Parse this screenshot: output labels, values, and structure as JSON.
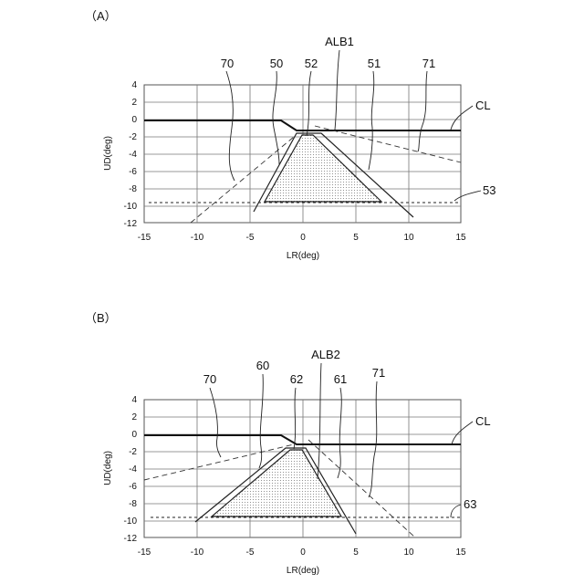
{
  "panels": [
    {
      "label": "（A）",
      "xlabel": "LR(deg)",
      "ylabel": "UD(deg)",
      "x_ticks": [
        "-15",
        "-10",
        "-5",
        "0",
        "5",
        "10",
        "15"
      ],
      "y_ticks": [
        "4",
        "2",
        "0",
        "-2",
        "-4",
        "-6",
        "-8",
        "-10",
        "-12"
      ],
      "refs": {
        "r70": "70",
        "r50": "50",
        "r52": "52",
        "alb": "ALB1",
        "r51": "51",
        "r71": "71",
        "cl": "CL",
        "r53": "53"
      }
    },
    {
      "label": "（B）",
      "xlabel": "LR(deg)",
      "ylabel": "UD(deg)",
      "x_ticks": [
        "-15",
        "-10",
        "-5",
        "0",
        "5",
        "10",
        "15"
      ],
      "y_ticks": [
        "4",
        "2",
        "0",
        "-2",
        "-4",
        "-6",
        "-8",
        "-10",
        "-12"
      ],
      "refs": {
        "r70": "70",
        "r60": "60",
        "r62": "62",
        "alb": "ALB2",
        "r61": "61",
        "r71": "71",
        "cl": "CL",
        "r63": "63"
      }
    }
  ]
}
